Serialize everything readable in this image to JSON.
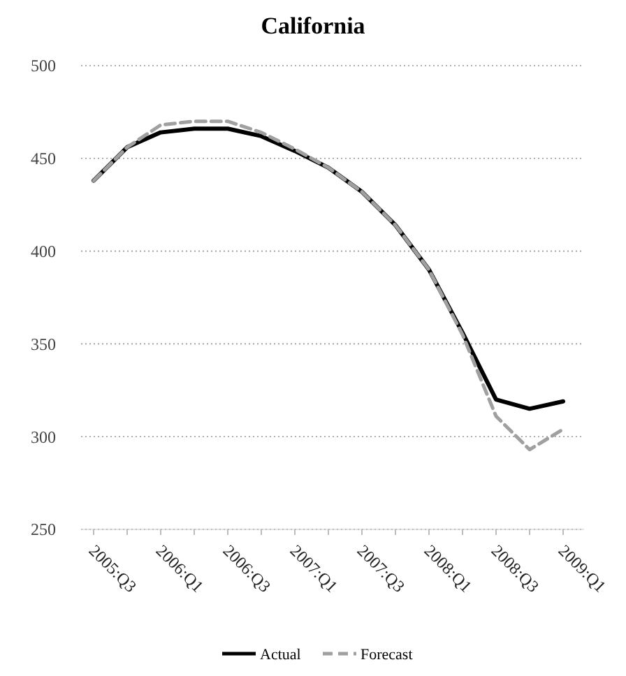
{
  "chart_data": {
    "type": "line",
    "title": "California",
    "categories": [
      "2005:Q3",
      null,
      "2006:Q1",
      null,
      "2006:Q3",
      null,
      "2007:Q1",
      null,
      "2007:Q3",
      null,
      "2008:Q1",
      null,
      "2008:Q3",
      null,
      "2009:Q1"
    ],
    "series": [
      {
        "name": "Actual",
        "color": "#000000",
        "line_style": "solid",
        "values": [
          438,
          456,
          464,
          466,
          466,
          462,
          454,
          445,
          432,
          414,
          390,
          356,
          320,
          315,
          319
        ]
      },
      {
        "name": "Forecast",
        "color": "#a0a0a0",
        "line_style": "dashed",
        "values": [
          438,
          456,
          468,
          470,
          470,
          464,
          455,
          445,
          432,
          414,
          390,
          355,
          311,
          293,
          304
        ]
      }
    ],
    "ylim": [
      250,
      500
    ],
    "yticks": [
      250,
      300,
      350,
      400,
      450,
      500
    ],
    "grid": "y",
    "legend": "bottom",
    "marker": "none"
  }
}
